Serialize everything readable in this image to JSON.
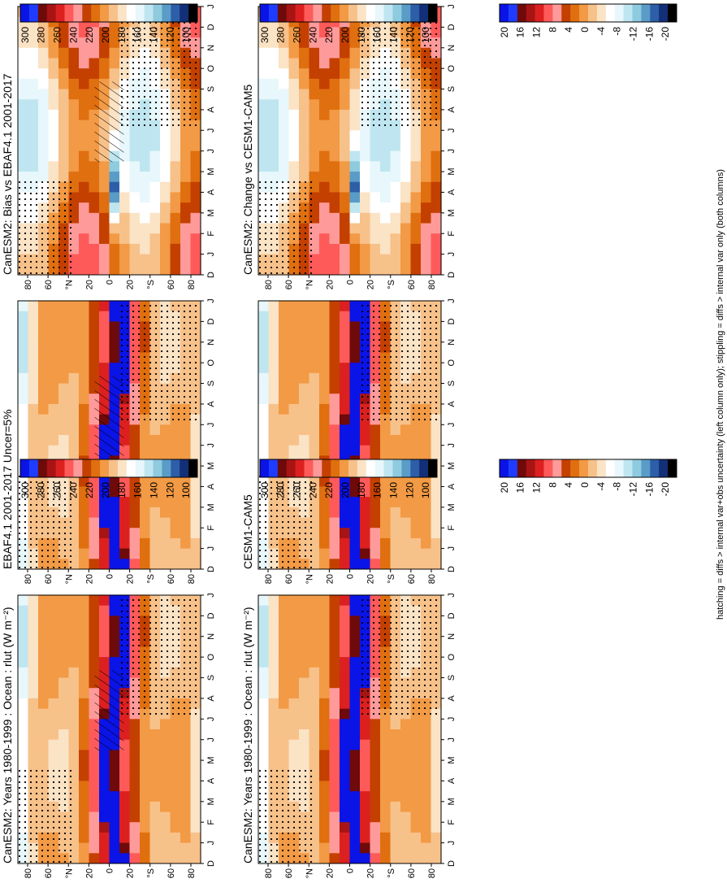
{
  "figure": {
    "footer": "hatching = diffs > internal var+obs uncertainty (left column only); stippling = diffs > internal var only (both columns)"
  },
  "colorbars": {
    "absolute": {
      "ticks": [
        "300",
        "280",
        "260",
        "240",
        "220",
        "200",
        "180",
        "160",
        "140",
        "120",
        "100"
      ],
      "colors": [
        "#0a14e6",
        "#1e3cff",
        "#6e0a0a",
        "#a81414",
        "#dc2020",
        "#ff5a5a",
        "#ff9a9a",
        "#c44000",
        "#e06f10",
        "#f29a45",
        "#f7c18a",
        "#fbe3c5",
        "#ffffff",
        "#e7f7fb",
        "#bfe6f0",
        "#8ecbdf",
        "#5a9cc8",
        "#2c5fa8",
        "#132f78",
        "#000000"
      ]
    },
    "difference": {
      "ticks": [
        "20",
        "16",
        "12",
        "8",
        "4",
        "0",
        "-4",
        "-8",
        "-12",
        "-16",
        "-20"
      ],
      "colors": [
        "#0a14e6",
        "#1e3cff",
        "#6e0a0a",
        "#a81414",
        "#dc2020",
        "#ff5a5a",
        "#ff9a9a",
        "#c44000",
        "#e06f10",
        "#f29a45",
        "#f7c18a",
        "#fbe3c5",
        "#ffffff",
        "#e7f7fb",
        "#bfe6f0",
        "#8ecbdf",
        "#5a9cc8",
        "#2c5fa8",
        "#132f78",
        "#000000"
      ]
    }
  },
  "axes": {
    "months": [
      "D",
      "J",
      "F",
      "M",
      "A",
      "M",
      "J",
      "J",
      "A",
      "S",
      "O",
      "N",
      "D",
      "J"
    ],
    "latitudes": [
      "80",
      "60",
      "°N",
      "20",
      "0",
      "20",
      "°S",
      "60",
      "80"
    ]
  },
  "chart_data": [
    {
      "type": "heatmap",
      "title": "CanESM2: Years 1980-1999 : Ocean : rlut (W m⁻²)",
      "column": "left",
      "row": 1,
      "xlabel": "month",
      "ylabel": "latitude",
      "ylim": [
        -90,
        90
      ],
      "colorbar": "absolute",
      "clim": [
        100,
        300
      ],
      "hatching": true,
      "stippling": true
    },
    {
      "type": "heatmap",
      "title": "CanESM2: Years 1980-1999 : Ocean : rlut (W m⁻²)",
      "column": "right",
      "row": 1,
      "xlabel": "month",
      "ylabel": "latitude",
      "ylim": [
        -90,
        90
      ],
      "colorbar": "absolute",
      "clim": [
        100,
        300
      ],
      "hatching": false,
      "stippling": true
    },
    {
      "type": "heatmap",
      "title": "EBAF4.1 2001-2017 Uncer=5%",
      "column": "left",
      "row": 2,
      "xlabel": "month",
      "ylabel": "latitude",
      "ylim": [
        -90,
        90
      ],
      "colorbar": "absolute",
      "clim": [
        100,
        300
      ],
      "hatching": true,
      "stippling": true
    },
    {
      "type": "heatmap",
      "title": "CESM1-CAM5",
      "column": "right",
      "row": 2,
      "xlabel": "month",
      "ylabel": "latitude",
      "ylim": [
        -90,
        90
      ],
      "colorbar": "absolute",
      "clim": [
        100,
        300
      ],
      "hatching": false,
      "stippling": true
    },
    {
      "type": "heatmap",
      "title": "CanESM2: Bias vs EBAF4.1 2001-2017",
      "column": "left",
      "row": 3,
      "xlabel": "month",
      "ylabel": "latitude",
      "ylim": [
        -90,
        90
      ],
      "colorbar": "difference",
      "clim": [
        -20,
        20
      ],
      "hatching": true,
      "stippling": true
    },
    {
      "type": "heatmap",
      "title": "CanESM2: Change vs CESM1-CAM5",
      "column": "right",
      "row": 3,
      "xlabel": "month",
      "ylabel": "latitude",
      "ylim": [
        -90,
        90
      ],
      "colorbar": "difference",
      "clim": [
        -20,
        20
      ],
      "hatching": false,
      "stippling": true
    }
  ]
}
